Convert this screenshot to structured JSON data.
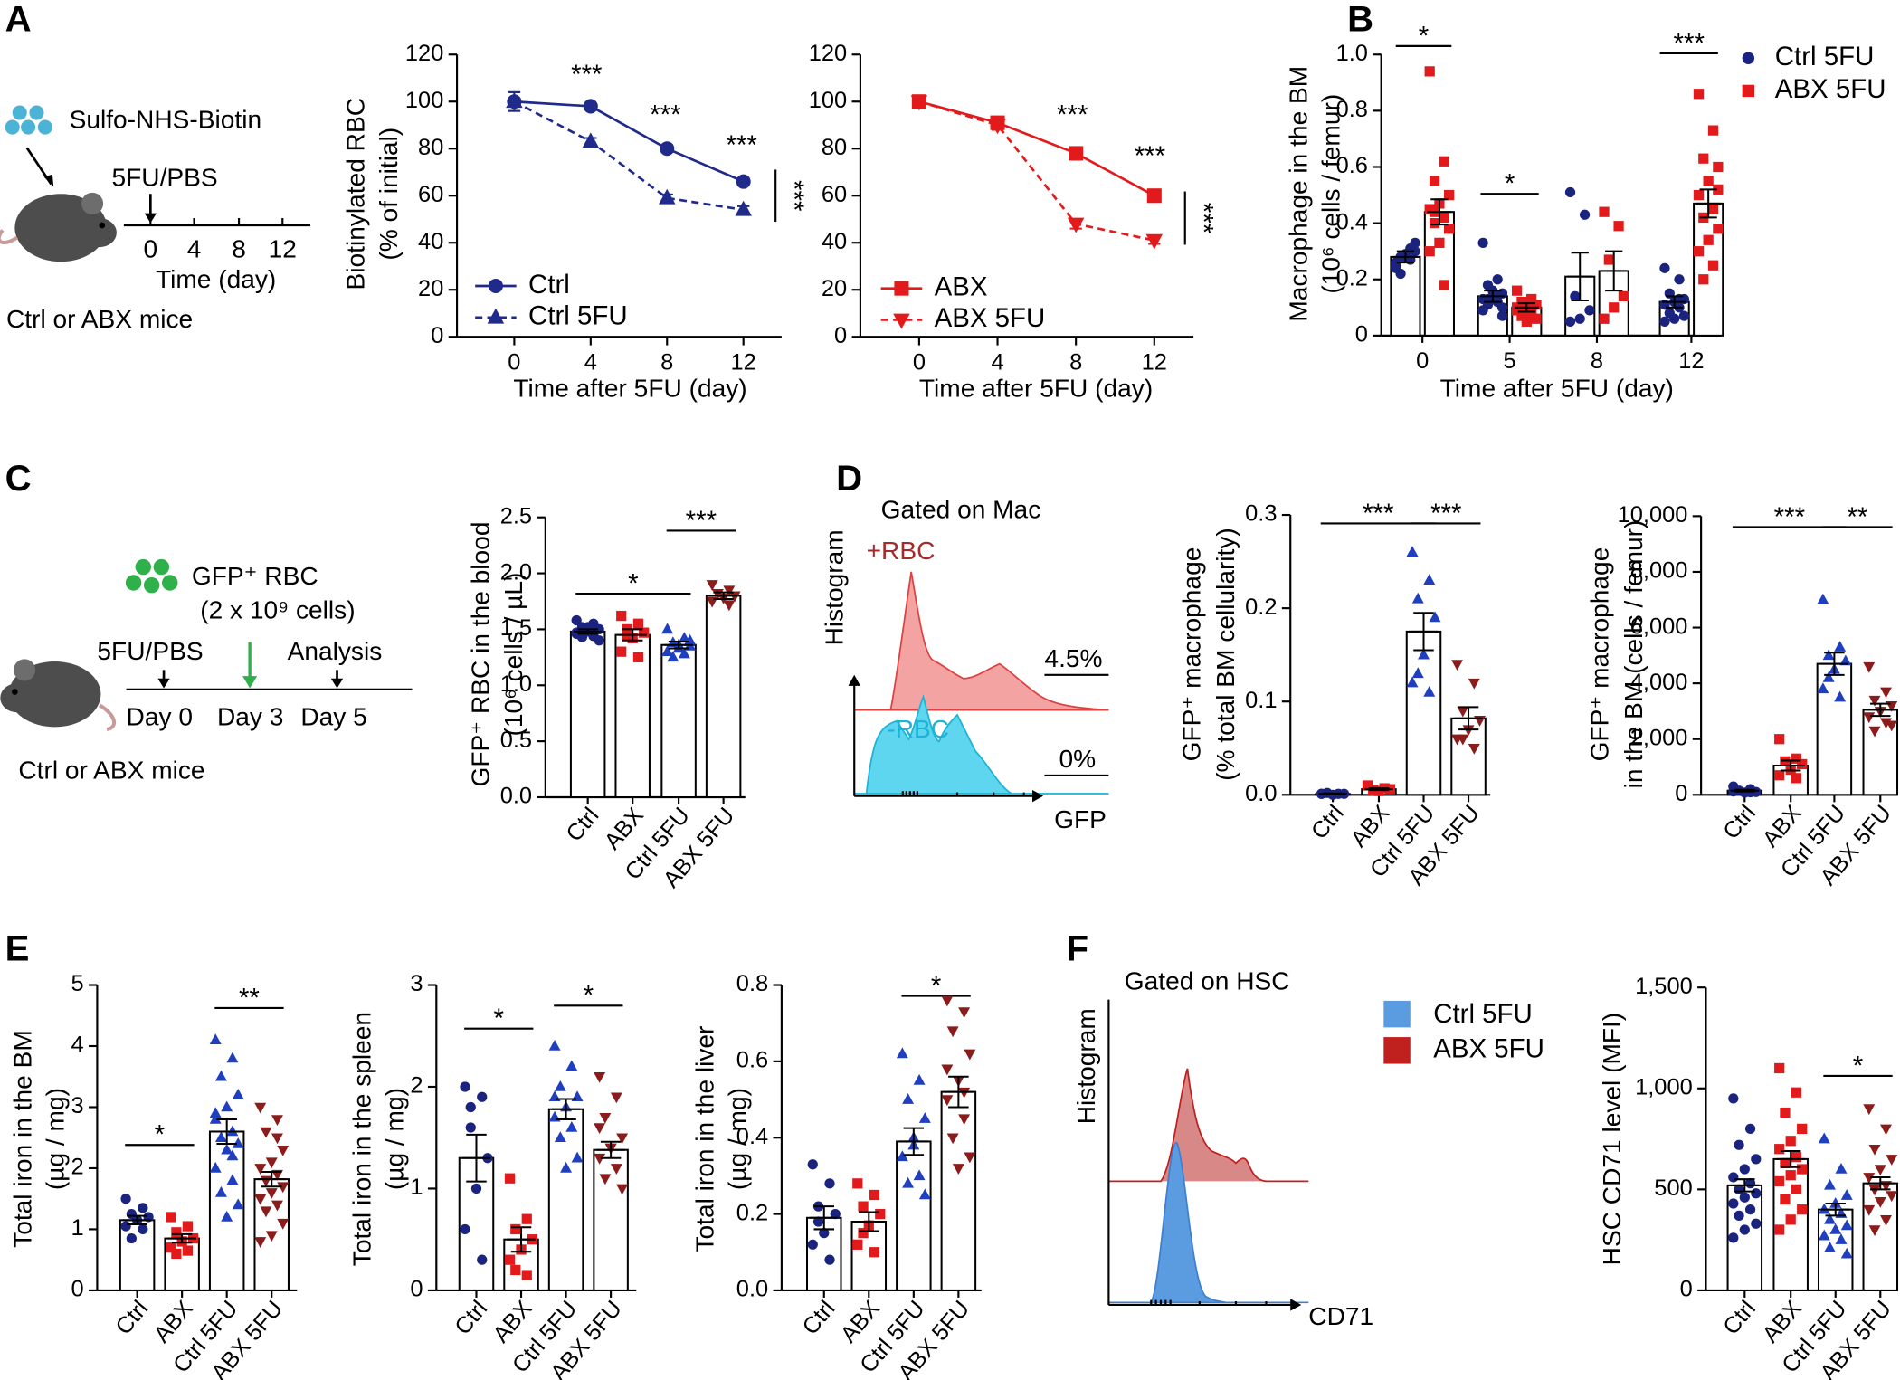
{
  "panels": [
    "A",
    "B",
    "C",
    "D",
    "E",
    "F"
  ],
  "schematic_a": {
    "reagent": "Sulfo-NHS-Biotin",
    "treatment": "5FU/PBS",
    "timeline_ticks": [
      "0",
      "4",
      "8",
      "12"
    ],
    "xlabel": "Time (day)",
    "mice": "Ctrl or ABX mice"
  },
  "schematic_c": {
    "cells": "GFP⁺ RBC",
    "dose": "(2 x 10⁹ cells)",
    "treatment": "5FU/PBS",
    "analysis": "Analysis",
    "days": [
      "Day 0",
      "Day 3",
      "Day 5"
    ],
    "mice": "Ctrl or ABX mice"
  },
  "flow_d": {
    "title": "Gated on Mac",
    "ylabel": "Histogram",
    "xlabel": "GFP",
    "groups": [
      {
        "name": "+RBC",
        "percent": "4.5%"
      },
      {
        "name": "-RBC",
        "percent": "0%"
      }
    ]
  },
  "flow_f": {
    "title": "Gated on HSC",
    "ylabel": "Histogram",
    "xlabel": "CD71",
    "legend": [
      {
        "name": "Ctrl 5FU",
        "color": "#5b9be0"
      },
      {
        "name": "ABX 5FU",
        "color": "#c0201e"
      }
    ]
  },
  "chart_data": [
    {
      "type": "line",
      "ylabel": [
        "Biotinylated RBC",
        "(% of initial)"
      ],
      "xlabel": "Time after 5FU (day)",
      "x": [
        0,
        4,
        8,
        12
      ],
      "xlim": [
        -3,
        14
      ],
      "xticks": [
        0,
        4,
        8,
        12
      ],
      "ylim": [
        0,
        120
      ],
      "yticks": [
        0,
        20,
        40,
        60,
        80,
        100,
        120
      ],
      "series": [
        {
          "name": "Ctrl",
          "color": "#1f2a8a",
          "marker": "circle",
          "line_style": "solid",
          "values": [
            100,
            98,
            80,
            66
          ],
          "errors": [
            4,
            1,
            1.5,
            1.5
          ]
        },
        {
          "name": "Ctrl 5FU",
          "color": "#1f2a8a",
          "marker": "triangle",
          "line_style": "dashed",
          "values": [
            100,
            83,
            59,
            54
          ],
          "errors": [
            4,
            1.5,
            1.5,
            1.5
          ]
        }
      ],
      "annotations": [
        "***",
        "***",
        "***",
        "***"
      ]
    },
    {
      "type": "line",
      "xlabel": "Time after 5FU (day)",
      "x": [
        0,
        4,
        8,
        12
      ],
      "xlim": [
        -3,
        14
      ],
      "xticks": [
        0,
        4,
        8,
        12
      ],
      "ylim": [
        0,
        120
      ],
      "yticks": [
        0,
        20,
        40,
        60,
        80,
        100,
        120
      ],
      "series": [
        {
          "name": "ABX",
          "color": "#e31a1c",
          "marker": "square",
          "line_style": "solid",
          "values": [
            100,
            91,
            78,
            60
          ],
          "errors": [
            1,
            1,
            1.5,
            2
          ]
        },
        {
          "name": "ABX 5FU",
          "color": "#e31a1c",
          "marker": "tri-down",
          "line_style": "dashed",
          "values": [
            100,
            90,
            48,
            41
          ],
          "errors": [
            1,
            2,
            2,
            1.5
          ]
        }
      ],
      "annotations": [
        "***",
        "***",
        "***"
      ]
    },
    {
      "type": "bar",
      "ylabel": [
        "Macrophage in the BM",
        "(10⁶ cells / femur)"
      ],
      "xlabel": "Time after 5FU (day)",
      "categories": [
        "0",
        "5",
        "8",
        "12"
      ],
      "ylim": [
        0,
        1.0
      ],
      "yticks": [
        0,
        0.2,
        0.4,
        0.6,
        0.8,
        {
          "value": 1.0,
          "label": "1.0"
        }
      ],
      "series": [
        {
          "name": "Ctrl 5FU",
          "color": "#1a237e",
          "marker": "circle",
          "values": [
            0.28,
            0.14,
            0.21,
            0.12
          ],
          "errors": [
            0.02,
            0.02,
            0.085,
            0.02
          ],
          "points": [
            [
              0.25,
              0.27,
              0.28,
              0.3,
              0.29,
              0.26,
              0.31,
              0.22,
              0.33,
              0.28,
              0.24
            ],
            [
              0.33,
              0.2,
              0.18,
              0.15,
              0.14,
              0.13,
              0.12,
              0.11,
              0.1,
              0.16,
              0.09,
              0.14,
              0.13,
              0.07
            ],
            [
              0.51,
              0.43,
              0.14,
              0.09,
              0.06,
              0.05
            ],
            [
              0.24,
              0.2,
              0.15,
              0.13,
              0.12,
              0.11,
              0.1,
              0.08,
              0.07,
              0.06,
              0.05,
              0.13
            ]
          ]
        },
        {
          "name": "ABX 5FU",
          "color": "#e31a1c",
          "marker": "square",
          "values": [
            0.44,
            0.1,
            0.23,
            0.47
          ],
          "errors": [
            0.045,
            0.015,
            0.07,
            0.05
          ],
          "points": [
            [
              0.94,
              0.62,
              0.55,
              0.5,
              0.47,
              0.45,
              0.42,
              0.4,
              0.38,
              0.33,
              0.3,
              0.18,
              0.44
            ],
            [
              0.16,
              0.13,
              0.12,
              0.11,
              0.1,
              0.09,
              0.08,
              0.07,
              0.06,
              0.05,
              0.1,
              0.09
            ],
            [
              0.44,
              0.39,
              0.27,
              0.14,
              0.1,
              0.06
            ],
            [
              0.86,
              0.73,
              0.63,
              0.6,
              0.55,
              0.5,
              0.45,
              0.42,
              0.38,
              0.34,
              0.3,
              0.25,
              0.2,
              0.52
            ]
          ]
        }
      ],
      "annotations": [
        "*",
        "*",
        "***"
      ]
    },
    {
      "type": "bar",
      "ylabel": [
        "GFP⁺ RBC in the blood",
        "(10⁶ cells / µL)"
      ],
      "categories": [
        "Ctrl",
        "ABX",
        "Ctrl 5FU",
        "ABX 5FU"
      ],
      "ylim": [
        0,
        2.5
      ],
      "yticks": [
        {
          "value": 0,
          "label": "0.0"
        },
        0.5,
        {
          "value": 1,
          "label": "1.0"
        },
        1.5,
        {
          "value": 2,
          "label": "2.0"
        },
        2.5
      ],
      "values": [
        1.48,
        1.45,
        1.36,
        1.8
      ],
      "errors": [
        0.02,
        0.05,
        0.03,
        0.03
      ],
      "colors": [
        "#1a237e",
        "#e31a1c",
        "#1f3fbf",
        "#8b1c1c"
      ],
      "markers": [
        "circle",
        "square",
        "triangle",
        "tri-down"
      ],
      "points": [
        [
          1.58,
          1.55,
          1.52,
          1.5,
          1.48,
          1.47,
          1.45,
          1.43,
          1.4,
          1.52,
          1.46,
          1.44
        ],
        [
          1.62,
          1.55,
          1.5,
          1.47,
          1.42,
          1.3,
          1.25,
          1.45
        ],
        [
          1.5,
          1.42,
          1.38,
          1.35,
          1.33,
          1.3,
          1.28,
          1.25,
          1.4,
          1.36
        ],
        [
          1.9,
          1.85,
          1.82,
          1.8,
          1.78,
          1.75,
          1.72
        ]
      ],
      "annotations": [
        "*",
        "***"
      ]
    },
    {
      "type": "bar",
      "ylabel": [
        "GFP⁺ macrophage",
        "(% total BM cellularity)"
      ],
      "categories": [
        "Ctrl",
        "ABX",
        "Ctrl 5FU",
        "ABX 5FU"
      ],
      "ylim": [
        0,
        0.3
      ],
      "yticks": [
        {
          "value": 0,
          "label": "0.0"
        },
        0.1,
        0.2,
        0.3
      ],
      "values": [
        0.001,
        0.006,
        0.175,
        0.082
      ],
      "errors": [
        0.0005,
        0.001,
        0.02,
        0.012
      ],
      "colors": [
        "#1a237e",
        "#e31a1c",
        "#1f3fbf",
        "#8b1c1c"
      ],
      "markers": [
        "circle",
        "square",
        "triangle",
        "tri-down"
      ],
      "points": [
        [
          0.001,
          0.001,
          0.002,
          0.001,
          0,
          0.001
        ],
        [
          0.01,
          0.007,
          0.005,
          0.006,
          0.004
        ],
        [
          0.26,
          0.23,
          0.21,
          0.19,
          0.15,
          0.12,
          0.11,
          0.13
        ],
        [
          0.14,
          0.12,
          0.09,
          0.08,
          0.07,
          0.06,
          0.05,
          0.06
        ]
      ],
      "annotations": [
        "***",
        "***"
      ]
    },
    {
      "type": "bar",
      "ylabel": [
        "GFP⁺ macrophage",
        "in the BM (cells / femur)"
      ],
      "categories": [
        "Ctrl",
        "ABX",
        "Ctrl 5FU",
        "ABX 5FU"
      ],
      "ylim": [
        0,
        10000
      ],
      "yticks": [
        0,
        {
          "value": 2000,
          "label": "2,000"
        },
        {
          "value": 4000,
          "label": "4,000"
        },
        {
          "value": 6000,
          "label": "6,000"
        },
        {
          "value": 8000,
          "label": "8,000"
        },
        {
          "value": 10000,
          "label": "10,000"
        }
      ],
      "values": [
        150,
        1050,
        4700,
        3050
      ],
      "errors": [
        30,
        180,
        400,
        220
      ],
      "colors": [
        "#1a237e",
        "#e31a1c",
        "#1f3fbf",
        "#8b1c1c"
      ],
      "markers": [
        "circle",
        "square",
        "triangle",
        "tri-down"
      ],
      "points": [
        [
          300,
          200,
          150,
          100,
          80,
          120,
          90
        ],
        [
          2000,
          1300,
          1200,
          1100,
          900,
          700,
          600
        ],
        [
          7000,
          5300,
          5000,
          4800,
          4500,
          3800,
          3500,
          4200
        ],
        [
          4600,
          3700,
          3400,
          3200,
          3000,
          2800,
          2600,
          2300,
          2500
        ]
      ],
      "annotations": [
        "***",
        "**"
      ]
    },
    {
      "type": "bar",
      "ylabel": [
        "Total iron in the BM",
        "(µg / mg)"
      ],
      "categories": [
        "Ctrl",
        "ABX",
        "Ctrl 5FU",
        "ABX 5FU"
      ],
      "ylim": [
        0,
        5
      ],
      "yticks": [
        0,
        1,
        2,
        3,
        4,
        5
      ],
      "values": [
        1.15,
        0.85,
        2.6,
        1.82
      ],
      "errors": [
        0.07,
        0.07,
        0.2,
        0.12
      ],
      "colors": [
        "#1a237e",
        "#e31a1c",
        "#1f3fbf",
        "#8b1c1c"
      ],
      "markers": [
        "circle",
        "square",
        "triangle",
        "tri-down"
      ],
      "points": [
        [
          1.5,
          1.35,
          1.25,
          1.2,
          1.15,
          1.05,
          1,
          0.85
        ],
        [
          1.2,
          1.05,
          0.95,
          0.85,
          0.8,
          0.7,
          0.65,
          0.6
        ],
        [
          4.1,
          3.8,
          3.5,
          3.2,
          3,
          2.8,
          2.6,
          2.5,
          2.4,
          2.3,
          2,
          1.8,
          1.6,
          1.4,
          1.2,
          2.9,
          2.2
        ],
        [
          3,
          2.8,
          2.6,
          2.3,
          2.1,
          2,
          1.9,
          1.8,
          1.7,
          1.6,
          1.5,
          1.4,
          1.3,
          1.1,
          0.9,
          0.8,
          2.5
        ]
      ],
      "annotations": [
        "*",
        "**"
      ]
    },
    {
      "type": "bar",
      "ylabel": [
        "Total iron in the spleen",
        "(µg / mg)"
      ],
      "categories": [
        "Ctrl",
        "ABX",
        "Ctrl 5FU",
        "ABX 5FU"
      ],
      "ylim": [
        0,
        3
      ],
      "yticks": [
        0,
        1,
        2,
        3
      ],
      "values": [
        1.3,
        0.5,
        1.78,
        1.38
      ],
      "errors": [
        0.23,
        0.12,
        0.1,
        0.08
      ],
      "colors": [
        "#1a237e",
        "#e31a1c",
        "#1f3fbf",
        "#8b1c1c"
      ],
      "markers": [
        "circle",
        "square",
        "triangle",
        "tri-down"
      ],
      "points": [
        [
          2,
          1.9,
          1.8,
          1.3,
          1,
          0.6,
          0.3,
          1.6
        ],
        [
          1.1,
          0.7,
          0.6,
          0.5,
          0.4,
          0.3,
          0.15,
          0.2
        ],
        [
          2.4,
          2.2,
          2,
          1.9,
          1.8,
          1.7,
          1.6,
          1.5,
          1.3,
          1.2,
          1.9
        ],
        [
          2.1,
          1.9,
          1.7,
          1.5,
          1.4,
          1.3,
          1.2,
          1.1,
          1,
          1.4,
          1.6
        ]
      ],
      "annotations": [
        "*",
        "*"
      ]
    },
    {
      "type": "bar",
      "ylabel": [
        "Total iron in the liver",
        "(µg / mg)"
      ],
      "categories": [
        "Ctrl",
        "ABX",
        "Ctrl 5FU",
        "ABX 5FU"
      ],
      "ylim": [
        0,
        0.8
      ],
      "yticks": [
        {
          "value": 0,
          "label": "0.0"
        },
        0.2,
        0.4,
        0.6,
        0.8
      ],
      "values": [
        0.19,
        0.18,
        0.39,
        0.52
      ],
      "errors": [
        0.03,
        0.025,
        0.035,
        0.04
      ],
      "colors": [
        "#1a237e",
        "#e31a1c",
        "#1f3fbf",
        "#8b1c1c"
      ],
      "markers": [
        "circle",
        "square",
        "triangle",
        "tri-down"
      ],
      "points": [
        [
          0.33,
          0.28,
          0.22,
          0.2,
          0.15,
          0.12,
          0.08,
          0.18
        ],
        [
          0.28,
          0.25,
          0.22,
          0.2,
          0.17,
          0.12,
          0.1,
          0.15
        ],
        [
          0.62,
          0.55,
          0.5,
          0.45,
          0.4,
          0.35,
          0.3,
          0.28,
          0.25,
          0.38
        ],
        [
          0.76,
          0.73,
          0.68,
          0.62,
          0.55,
          0.5,
          0.45,
          0.4,
          0.35,
          0.32,
          0.58,
          0.52
        ]
      ],
      "annotations": [
        "*"
      ]
    },
    {
      "type": "bar",
      "ylabel": [
        "HSC CD71 level (MFI)"
      ],
      "categories": [
        "Ctrl",
        "ABX",
        "Ctrl 5FU",
        "ABX 5FU"
      ],
      "ylim": [
        0,
        1500
      ],
      "yticks": [
        0,
        500,
        {
          "value": 1000,
          "label": "1,000"
        },
        {
          "value": 1500,
          "label": "1,500"
        }
      ],
      "values": [
        520,
        650,
        400,
        530
      ],
      "errors": [
        30,
        40,
        30,
        30
      ],
      "colors": [
        "#1a237e",
        "#e31a1c",
        "#1f3fbf",
        "#8b1c1c"
      ],
      "markers": [
        "circle",
        "square",
        "triangle",
        "tri-down"
      ],
      "points": [
        [
          950,
          800,
          720,
          650,
          600,
          560,
          530,
          500,
          480,
          460,
          430,
          400,
          370,
          330,
          300,
          260
        ],
        [
          1100,
          980,
          880,
          800,
          740,
          700,
          660,
          630,
          600,
          570,
          540,
          500,
          450,
          400,
          350,
          300
        ],
        [
          750,
          600,
          520,
          470,
          430,
          400,
          380,
          350,
          320,
          300,
          270,
          250,
          210,
          180
        ],
        [
          900,
          800,
          700,
          650,
          600,
          560,
          520,
          500,
          470,
          440,
          400,
          350,
          300
        ]
      ],
      "annotations": [
        "*"
      ]
    }
  ]
}
